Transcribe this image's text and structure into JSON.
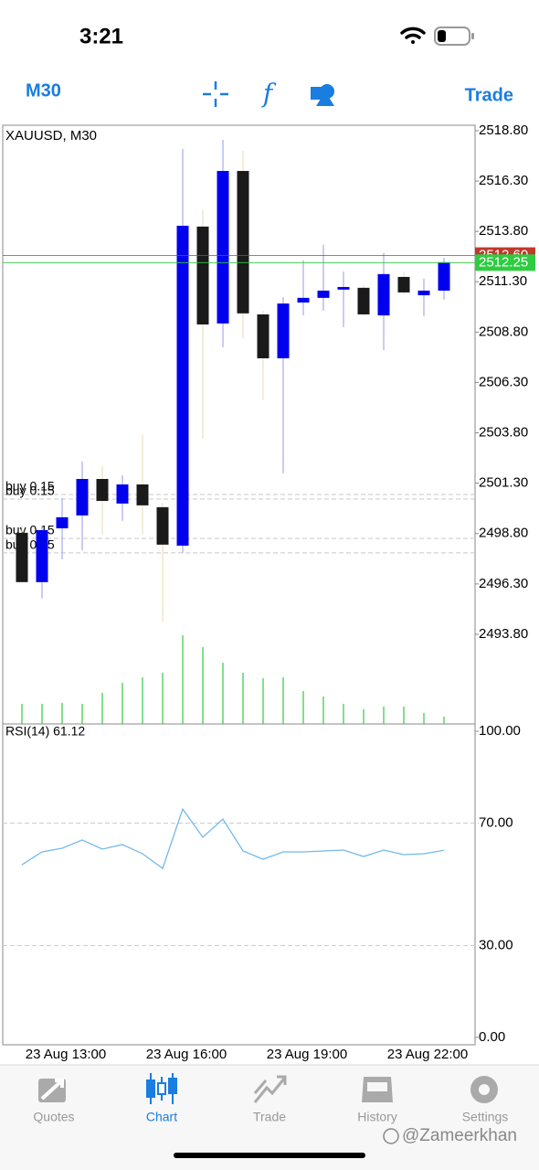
{
  "status_bar": {
    "time": "3:21"
  },
  "toolbar": {
    "timeframe": "M30",
    "trade": "Trade"
  },
  "chart_data": [
    {
      "type": "candlestick",
      "title": "XAUUSD, M30",
      "categories": [
        null,
        null,
        "23 Aug 13:00",
        null,
        null,
        null,
        null,
        null,
        "23 Aug 16:00",
        null,
        null,
        null,
        null,
        null,
        "23 Aug 19:00",
        null,
        null,
        null,
        null,
        null,
        "23 Aug 22:00",
        null
      ],
      "open": [
        2498.84,
        2496.39,
        2499.06,
        2499.7,
        2501.51,
        2500.29,
        2501.24,
        2500.11,
        2498.2,
        2514.04,
        2509.23,
        2516.8,
        2509.68,
        2507.5,
        2510.27,
        2510.5,
        2510.91,
        2511.0,
        2509.63,
        2511.54,
        2510.63,
        2510.86
      ],
      "high": [
        2499.2,
        2499.2,
        2500.56,
        2502.38,
        2502.15,
        2501.69,
        2503.74,
        2500.33,
        2517.89,
        2514.85,
        2518.35,
        2517.8,
        2509.86,
        2510.54,
        2512.36,
        2513.13,
        2511.81,
        2511.13,
        2512.72,
        2511.77,
        2511.45,
        2512.49
      ],
      "low": [
        2496.39,
        2495.57,
        2497.52,
        2497.97,
        2498.75,
        2499.43,
        2498.75,
        2494.43,
        2497.84,
        2503.51,
        2508.05,
        2508.5,
        2505.42,
        2501.79,
        2509.63,
        2509.86,
        2509.05,
        2509.63,
        2507.91,
        2510.68,
        2509.59,
        2510.41
      ],
      "close": [
        2496.39,
        2498.97,
        2499.61,
        2501.51,
        2500.42,
        2501.24,
        2500.2,
        2498.25,
        2514.08,
        2509.18,
        2516.8,
        2509.73,
        2507.5,
        2510.22,
        2510.5,
        2510.86,
        2511.04,
        2509.68,
        2511.68,
        2510.77,
        2510.86,
        2512.27
      ],
      "bull_color": "#0000ee",
      "bear_color": "#1a1a1a",
      "volume": [
        22,
        22,
        23,
        22,
        34,
        45,
        51,
        56,
        97,
        84,
        67,
        56,
        50,
        51,
        36,
        30,
        22,
        16,
        19,
        19,
        12,
        8
      ],
      "volume_color": "#2ecc40",
      "ylim": [
        2489.35,
        2519.07
      ],
      "yticks": [
        {
          "value": 2518.8,
          "label": "2518.80"
        },
        {
          "value": 2516.3,
          "label": "2516.30"
        },
        {
          "value": 2513.8,
          "label": "2513.80"
        },
        {
          "value": 2511.3,
          "label": "2511.30"
        },
        {
          "value": 2508.8,
          "label": "2508.80"
        },
        {
          "value": 2506.3,
          "label": "2506.30"
        },
        {
          "value": 2503.8,
          "label": "2503.80"
        },
        {
          "value": 2501.3,
          "label": "2501.30"
        },
        {
          "value": 2498.8,
          "label": "2498.80"
        },
        {
          "value": 2496.3,
          "label": "2496.30"
        },
        {
          "value": 2493.8,
          "label": "2493.80"
        }
      ],
      "ask": {
        "value": 2512.6,
        "label": "2512.60"
      },
      "ask_color": "#c0392b",
      "bid": 2512.25,
      "bid_color": "#2ecc40",
      "orders": [
        {
          "label": "buy 0.15",
          "price": 2500.74
        },
        {
          "label": "buy 0.15",
          "price": 2500.51
        },
        {
          "label": "buy 0.15",
          "price": 2498.56
        },
        {
          "label": "buy 0.15",
          "price": 2497.84
        }
      ]
    },
    {
      "type": "line",
      "title": "RSI(14) 61.12",
      "values": [
        56.4,
        60.6,
        61.8,
        64.5,
        61.5,
        63.0,
        60.0,
        55.2,
        74.6,
        65.4,
        71.3,
        60.9,
        58.2,
        60.6,
        60.6,
        60.9,
        61.2,
        59.1,
        61.2,
        59.7,
        60.0,
        61.12
      ],
      "color": "#74b9ea",
      "ylim": [
        -2.4,
        102.4
      ],
      "yticks": [
        {
          "value": 100,
          "label": "100.00"
        },
        {
          "value": 70,
          "label": "70.00"
        },
        {
          "value": 30,
          "label": "30.00"
        },
        {
          "value": 0,
          "label": "0.00"
        }
      ]
    }
  ],
  "tabs": [
    "Quotes",
    "Chart",
    "Trade",
    "History",
    "Settings"
  ],
  "watermark": "@Zameerkhan"
}
